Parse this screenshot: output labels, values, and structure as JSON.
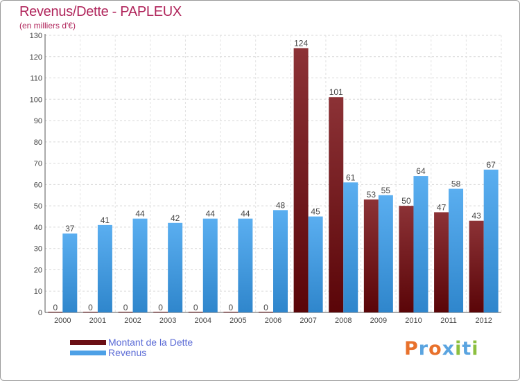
{
  "header": {
    "title": "Revenus/Dette - PAPLEUX",
    "subtitle": "(en milliers d'€)"
  },
  "legend": {
    "items": [
      {
        "label": "Montant de la Dette",
        "color": "#6b0f14"
      },
      {
        "label": "Revenus",
        "color": "#4da0e6"
      }
    ]
  },
  "logo": {
    "text": "Proxiti",
    "letters": [
      {
        "char": "P",
        "color": "#e8712c"
      },
      {
        "char": "r",
        "color": "#5aa4e0"
      },
      {
        "char": "o",
        "color": "#e8712c"
      },
      {
        "char": "x",
        "color": "#5aa4e0"
      },
      {
        "char": "i",
        "color": "#8cbf3f"
      },
      {
        "char": "t",
        "color": "#5aa4e0"
      },
      {
        "char": "i",
        "color": "#8cbf3f"
      }
    ]
  },
  "chart_data": {
    "type": "bar",
    "title": "Revenus/Dette - PAPLEUX",
    "subtitle": "(en milliers d'€)",
    "xlabel": "",
    "ylabel": "",
    "ylim": [
      0,
      130
    ],
    "yticks": [
      0,
      10,
      20,
      30,
      40,
      50,
      60,
      70,
      80,
      90,
      100,
      110,
      120,
      130
    ],
    "grid": "horizontal",
    "legend_position": "bottom-left",
    "categories": [
      "2000",
      "2001",
      "2002",
      "2003",
      "2004",
      "2005",
      "2006",
      "2007",
      "2008",
      "2009",
      "2010",
      "2011",
      "2012"
    ],
    "series": [
      {
        "name": "Montant de la Dette",
        "color": "#6b0f14",
        "values": [
          0,
          0,
          0,
          0,
          0,
          0,
          0,
          124,
          101,
          53,
          50,
          47,
          43
        ]
      },
      {
        "name": "Revenus",
        "color": "#4da0e6",
        "values": [
          37,
          41,
          44,
          42,
          44,
          44,
          48,
          45,
          61,
          55,
          64,
          58,
          67
        ]
      }
    ]
  }
}
